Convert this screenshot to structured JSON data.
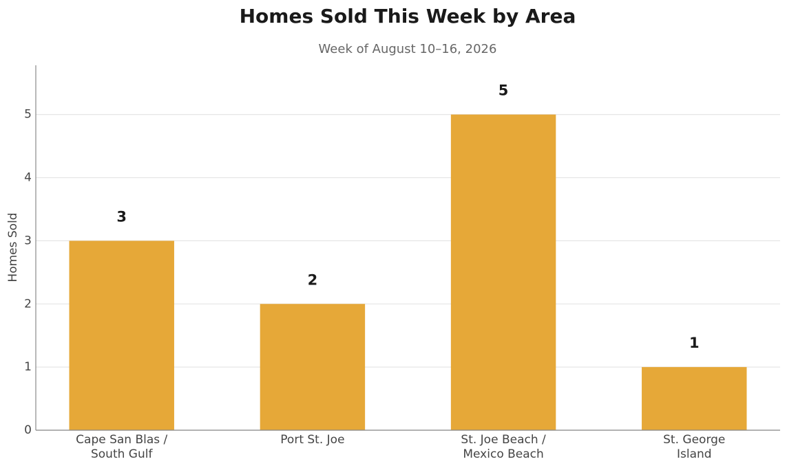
{
  "chart_data": {
    "type": "bar",
    "title": "Homes Sold This Week by Area",
    "subtitle": "Week of August 10–16, 2026",
    "y_label": "Homes Sold",
    "categories": [
      "Cape San Blas /\nSouth Gulf",
      "Port St. Joe",
      "St. Joe Beach /\nMexico Beach",
      "St. George\nIsland"
    ],
    "values": [
      3,
      2,
      5,
      1
    ],
    "color": "#e6a838",
    "ylim": [
      0,
      5.78
    ],
    "yticks": [
      0,
      1,
      2,
      3,
      4,
      5
    ],
    "grid": true
  }
}
